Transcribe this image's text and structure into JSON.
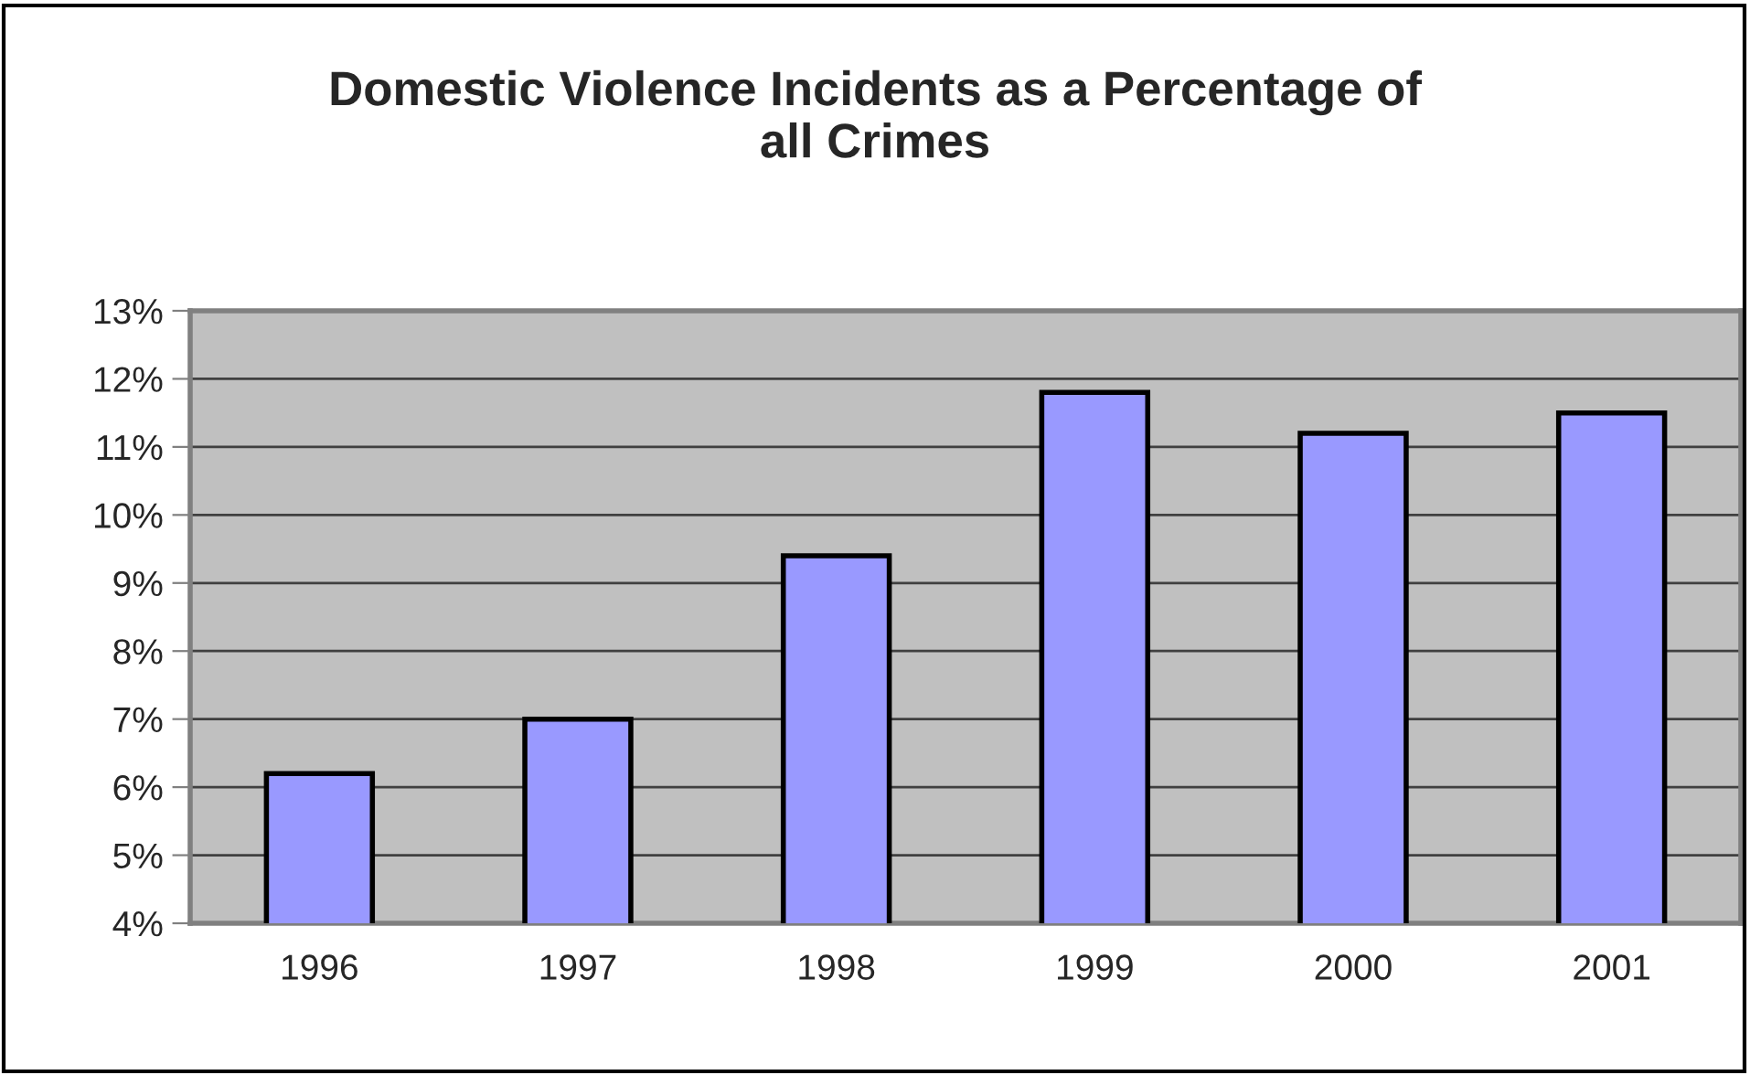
{
  "chart_data": {
    "type": "bar",
    "title": "Domestic Violence Incidents as a Percentage of\nall Crimes",
    "categories": [
      "1996",
      "1997",
      "1998",
      "1999",
      "2000",
      "2001"
    ],
    "values": [
      6.2,
      7.0,
      9.4,
      11.8,
      11.2,
      11.5
    ],
    "color": "#9999ff",
    "ylim": [
      4,
      13
    ],
    "yticks": [
      {
        "value": 4,
        "label": "4%"
      },
      {
        "value": 5,
        "label": "5%"
      },
      {
        "value": 6,
        "label": "6%"
      },
      {
        "value": 7,
        "label": "7%"
      },
      {
        "value": 8,
        "label": "8%"
      },
      {
        "value": 9,
        "label": "9%"
      },
      {
        "value": 10,
        "label": "10%"
      },
      {
        "value": 11,
        "label": "11%"
      },
      {
        "value": 12,
        "label": "12%"
      },
      {
        "value": 13,
        "label": "13%"
      }
    ],
    "grid": "y",
    "legend": false
  }
}
